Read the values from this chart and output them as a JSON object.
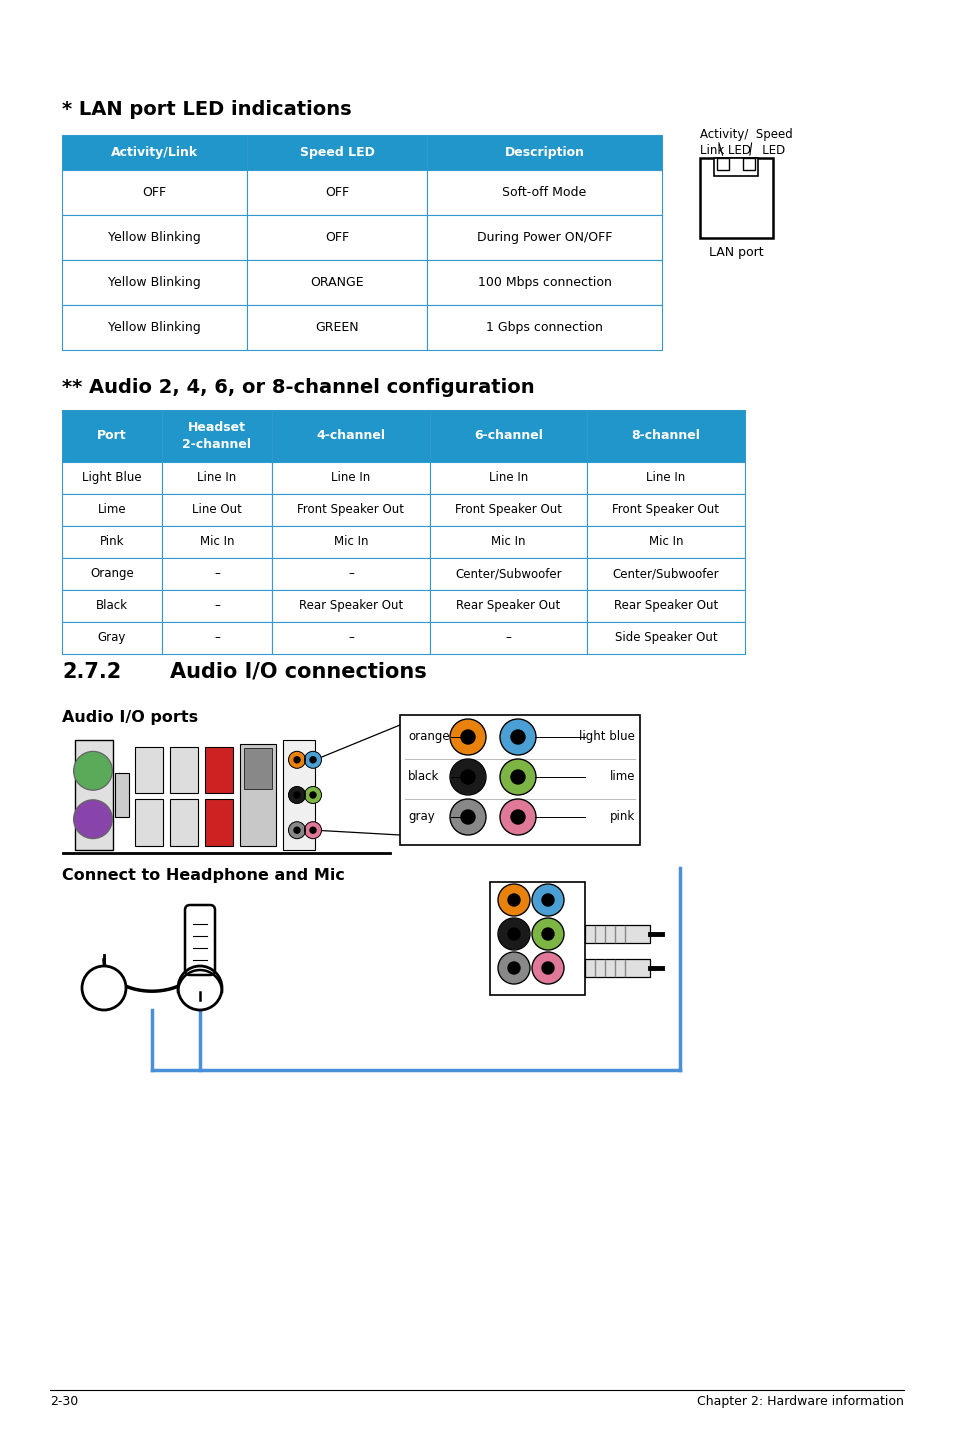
{
  "bg_color": "#ffffff",
  "page_number": "2-30",
  "footer_right": "Chapter 2: Hardware information",
  "lan_title": "* LAN port LED indications",
  "lan_header": [
    "Activity/Link",
    "Speed LED",
    "Description"
  ],
  "lan_header_color": "#2196CB",
  "lan_border_color": "#3399CC",
  "lan_rows": [
    [
      "OFF",
      "OFF",
      "Soft-off Mode"
    ],
    [
      "Yellow Blinking",
      "OFF",
      "During Power ON/OFF"
    ],
    [
      "Yellow Blinking",
      "ORANGE",
      "100 Mbps connection"
    ],
    [
      "Yellow Blinking",
      "GREEN",
      "1 Gbps connection"
    ]
  ],
  "audio_title": "** Audio 2, 4, 6, or 8-channel configuration",
  "audio_header": [
    "Port",
    "Headset\n2-channel",
    "4-channel",
    "6-channel",
    "8-channel"
  ],
  "audio_header_color": "#2196CB",
  "audio_border_color": "#3399CC",
  "audio_rows": [
    [
      "Light Blue",
      "Line In",
      "Line In",
      "Line In",
      "Line In"
    ],
    [
      "Lime",
      "Line Out",
      "Front Speaker Out",
      "Front Speaker Out",
      "Front Speaker Out"
    ],
    [
      "Pink",
      "Mic In",
      "Mic In",
      "Mic In",
      "Mic In"
    ],
    [
      "Orange",
      "–",
      "–",
      "Center/Subwoofer",
      "Center/Subwoofer"
    ],
    [
      "Black",
      "–",
      "Rear Speaker Out",
      "Rear Speaker Out",
      "Rear Speaker Out"
    ],
    [
      "Gray",
      "–",
      "–",
      "–",
      "Side Speaker Out"
    ]
  ],
  "section_272": "2.7.2",
  "section_272_title": "Audio I/O connections",
  "audio_io_subtitle": "Audio I/O ports",
  "connect_subtitle": "Connect to Headphone and Mic",
  "jack_labels_left": [
    "orange",
    "black",
    "gray"
  ],
  "jack_labels_right": [
    "light blue",
    "lime",
    "pink"
  ],
  "jack_colors_left": [
    "#E8820C",
    "#1a1a1a",
    "#888888"
  ],
  "jack_colors_right": [
    "#4A9FD4",
    "#7DB544",
    "#E07898"
  ]
}
